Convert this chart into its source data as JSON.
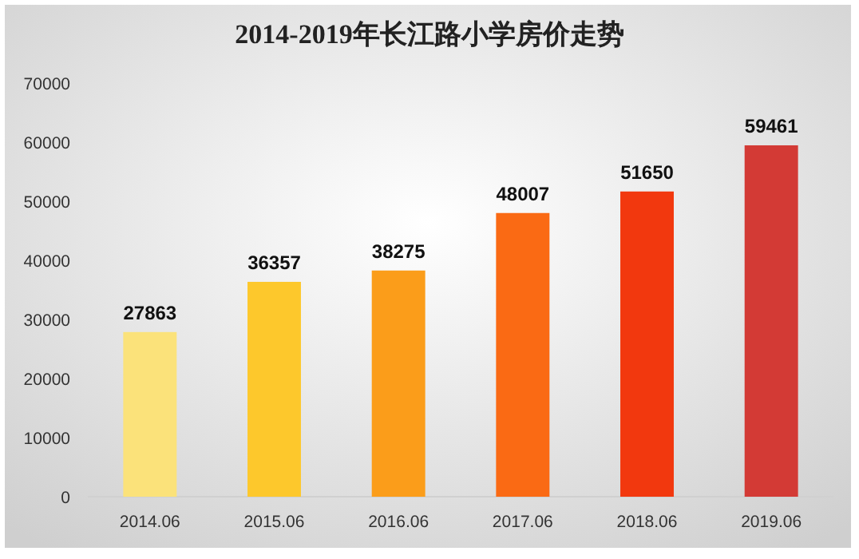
{
  "chart_data": {
    "type": "bar",
    "title": "2014-2019年长江路小学房价走势",
    "categories": [
      "2014.06",
      "2015.06",
      "2016.06",
      "2017.06",
      "2018.06",
      "2019.06"
    ],
    "values": [
      27863,
      36357,
      38275,
      48007,
      51650,
      59461
    ],
    "colors": [
      "#fbe27a",
      "#fdc82c",
      "#fb9d1a",
      "#fa6a14",
      "#f2380e",
      "#d33a35"
    ],
    "ylim": [
      0,
      70000
    ],
    "yticks": [
      0,
      10000,
      20000,
      30000,
      40000,
      50000,
      60000,
      70000
    ],
    "data_labels": true,
    "grid": false
  }
}
